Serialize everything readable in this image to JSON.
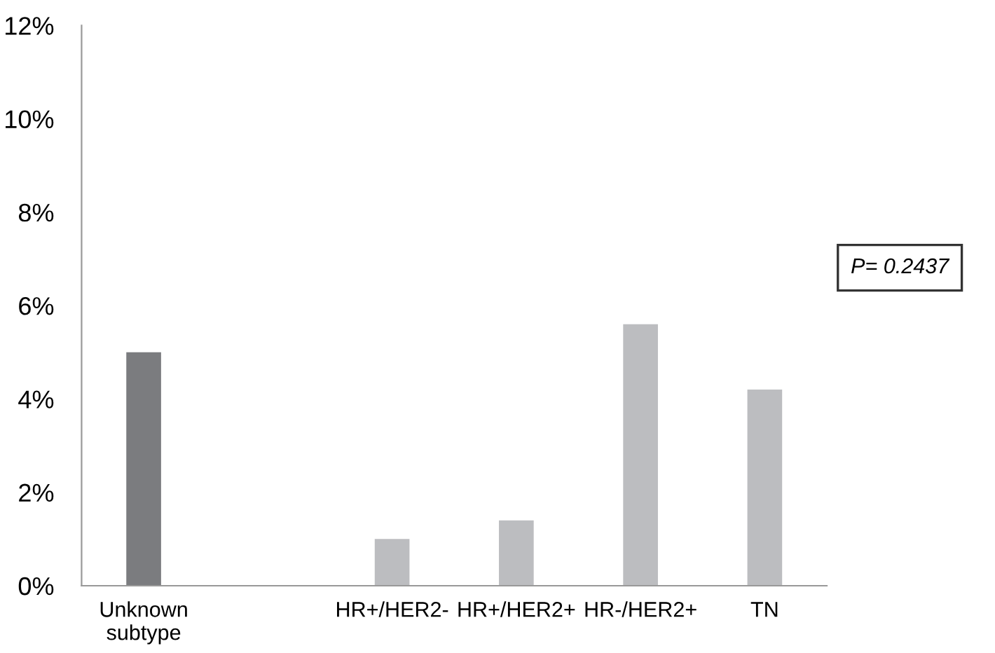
{
  "chart_data": {
    "type": "bar",
    "categories": [
      "Unknown\nsubtype",
      null,
      "HR+/HER2-",
      "HR+/HER2+",
      "HR-/HER2+",
      "TN"
    ],
    "values": [
      5.0,
      null,
      1.0,
      1.4,
      5.6,
      4.2
    ],
    "colors": [
      "#7b7c7f",
      "#bcbdc0",
      "#bcbdc0",
      "#bcbdc0",
      "#bcbdc0",
      "#bcbdc0"
    ],
    "ylim": [
      0,
      12
    ],
    "yticks": [
      {
        "value": 0,
        "label": "0%"
      },
      {
        "value": 2,
        "label": "2%"
      },
      {
        "value": 4,
        "label": "4%"
      },
      {
        "value": 6,
        "label": "6%"
      },
      {
        "value": 8,
        "label": "8%"
      },
      {
        "value": 10,
        "label": "10%"
      },
      {
        "value": 12,
        "label": "12%"
      }
    ],
    "annotations": [
      "P= 0.2437"
    ],
    "grid": false,
    "legend": false
  }
}
